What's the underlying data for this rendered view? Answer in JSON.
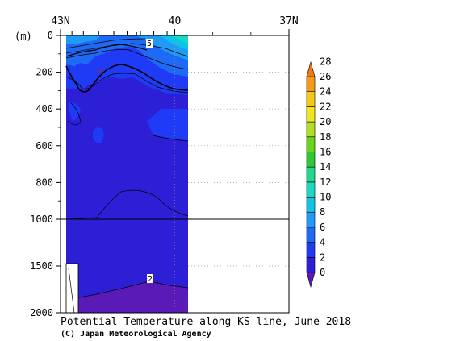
{
  "chart_data": {
    "type": "heatmap",
    "title": "Potential Temperature along KS line, June 2018",
    "credit": "(C) Japan Meteorological Agency",
    "x_axis": {
      "ticks": [
        {
          "lat": 43,
          "label": "43N"
        },
        {
          "lat": 40,
          "label": "40"
        },
        {
          "lat": 37,
          "label": "37N"
        }
      ],
      "lim": [
        43,
        37
      ]
    },
    "y_axis": {
      "unit": "(m)",
      "upper_ticks": [
        0,
        200,
        400,
        600,
        800,
        1000
      ],
      "lower_ticks": [
        1000,
        1500,
        2000
      ],
      "upper_lim": [
        0,
        1000
      ],
      "lower_lim": [
        1000,
        2000
      ]
    },
    "stations_lat": [
      42.7,
      42.4,
      42.0,
      41.6,
      41.25,
      40.9,
      40.55,
      40.2
    ],
    "data_extent_lat": [
      42.6,
      39.8
    ],
    "colorbar": {
      "levels": [
        0,
        2,
        4,
        6,
        8,
        10,
        12,
        14,
        16,
        18,
        20,
        22,
        24,
        26,
        28
      ],
      "labels": [
        "0",
        "2",
        "4",
        "6",
        "8",
        "10",
        "12",
        "14",
        "16",
        "18",
        "20",
        "22",
        "24",
        "26",
        "28"
      ],
      "colors": [
        "#5a1ab8",
        "#2d1fd6",
        "#1f3bf5",
        "#1f6af5",
        "#1f9af5",
        "#0fc4e6",
        "#19d9c0",
        "#1fd98c",
        "#2ec833",
        "#67d619",
        "#b0e01f",
        "#f0e61a",
        "#f5c814",
        "#f59a14",
        "#f07a0f"
      ]
    },
    "contour_labels": [
      "5",
      "2"
    ]
  }
}
